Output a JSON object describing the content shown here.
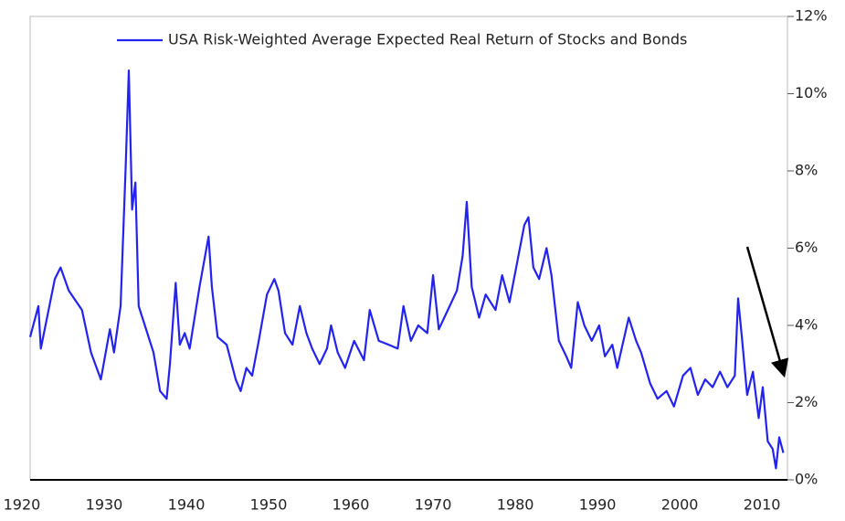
{
  "chart_data": {
    "type": "line",
    "x": [
      1921.0,
      1922.0,
      1922.3,
      1924.0,
      1924.7,
      1925.7,
      1927.3,
      1928.4,
      1929.6,
      1930.7,
      1931.2,
      1932.0,
      1932.6,
      1933.0,
      1933.4,
      1933.8,
      1934.2,
      1935.1,
      1936.0,
      1936.8,
      1937.6,
      1938.0,
      1938.7,
      1939.2,
      1939.8,
      1940.4,
      1941.6,
      1942.7,
      1943.1,
      1943.8,
      1944.9,
      1946.0,
      1946.6,
      1947.3,
      1948.0,
      1948.8,
      1949.8,
      1950.7,
      1951.2,
      1952.0,
      1952.9,
      1953.8,
      1954.6,
      1955.3,
      1956.2,
      1957.1,
      1957.6,
      1958.4,
      1959.3,
      1960.4,
      1961.6,
      1962.3,
      1963.4,
      1964.6,
      1965.7,
      1966.4,
      1967.3,
      1968.2,
      1969.3,
      1970.0,
      1970.7,
      1971.8,
      1972.9,
      1973.6,
      1974.1,
      1974.7,
      1975.6,
      1976.4,
      1977.6,
      1978.4,
      1979.3,
      1980.2,
      1981.1,
      1981.6,
      1982.2,
      1982.9,
      1983.8,
      1984.4,
      1985.3,
      1986.2,
      1986.8,
      1987.6,
      1988.4,
      1989.3,
      1990.2,
      1990.9,
      1991.8,
      1992.4,
      1993.8,
      1994.7,
      1995.3,
      1996.4,
      1997.3,
      1998.4,
      1999.3,
      2000.4,
      2001.3,
      2002.2,
      2003.1,
      2004.0,
      2004.9,
      2005.8,
      2006.7,
      2007.1,
      2007.6,
      2008.2,
      2008.9,
      2009.6,
      2010.1,
      2010.7,
      2011.3,
      2011.7,
      2012.1,
      2012.6
    ],
    "series": [
      {
        "name": "USA Risk-Weighted Average Expected Real Return of Stocks and Bonds",
        "color": "#2323f0",
        "values": [
          3.7,
          4.5,
          3.4,
          5.2,
          5.5,
          4.9,
          4.4,
          3.3,
          2.6,
          3.9,
          3.3,
          4.5,
          8.0,
          10.6,
          7.0,
          7.7,
          4.5,
          3.9,
          3.3,
          2.3,
          2.1,
          3.0,
          5.1,
          3.5,
          3.8,
          3.4,
          5.0,
          6.3,
          5.0,
          3.7,
          3.5,
          2.6,
          2.3,
          2.9,
          2.7,
          3.6,
          4.8,
          5.2,
          4.9,
          3.8,
          3.5,
          4.5,
          3.8,
          3.4,
          3.0,
          3.4,
          4.0,
          3.3,
          2.9,
          3.6,
          3.1,
          4.4,
          3.6,
          3.5,
          3.4,
          4.5,
          3.6,
          4.0,
          3.8,
          5.3,
          3.9,
          4.4,
          4.9,
          5.8,
          7.2,
          5.0,
          4.2,
          4.8,
          4.4,
          5.3,
          4.6,
          5.6,
          6.6,
          6.8,
          5.5,
          5.2,
          6.0,
          5.3,
          3.6,
          3.2,
          2.9,
          4.6,
          4.0,
          3.6,
          4.0,
          3.2,
          3.5,
          2.9,
          4.2,
          3.6,
          3.3,
          2.5,
          2.1,
          2.3,
          1.9,
          2.7,
          2.9,
          2.2,
          2.6,
          2.4,
          2.8,
          2.4,
          2.7,
          4.7,
          3.6,
          2.2,
          2.8,
          1.6,
          2.4,
          1.0,
          0.8,
          0.3,
          1.1,
          0.7
        ]
      }
    ],
    "xlim": [
      1921,
      2013.1
    ],
    "xticks": [
      1920,
      1930,
      1940,
      1950,
      1960,
      1970,
      1980,
      1990,
      2000,
      2010
    ],
    "ylim": [
      0,
      12
    ],
    "yticks": [
      {
        "value": 0,
        "label": "0%"
      },
      {
        "value": 2,
        "label": "2%"
      },
      {
        "value": 4,
        "label": "4%"
      },
      {
        "value": 6,
        "label": "6%"
      },
      {
        "value": 8,
        "label": "8%"
      },
      {
        "value": 10,
        "label": "10%"
      },
      {
        "value": 12,
        "label": "12%"
      }
    ],
    "legend": "upper center"
  }
}
